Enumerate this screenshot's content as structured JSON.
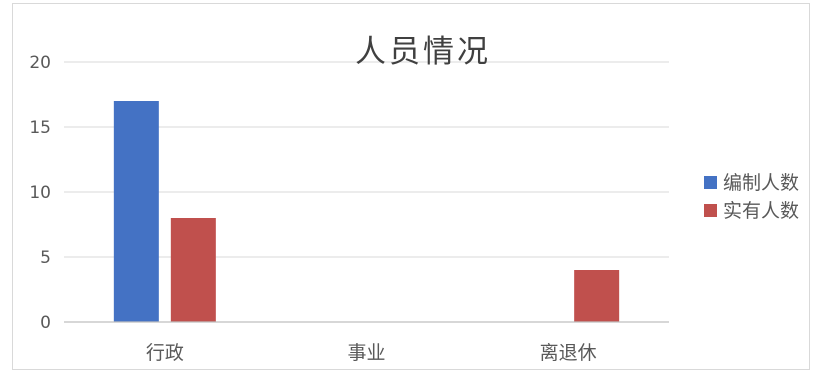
{
  "chart_data": {
    "type": "bar",
    "title": "人员情况",
    "categories": [
      "行政",
      "事业",
      "离退休"
    ],
    "series": [
      {
        "name": "编制人数",
        "values": [
          17,
          0,
          0
        ],
        "color": "#4472c4"
      },
      {
        "name": "实有人数",
        "values": [
          8,
          0,
          4
        ],
        "color": "#c0504d"
      }
    ],
    "ylim": [
      0,
      20
    ],
    "yticks": [
      "0",
      "5",
      "10",
      "15",
      "20"
    ],
    "grid": true,
    "legend_position": "right"
  }
}
